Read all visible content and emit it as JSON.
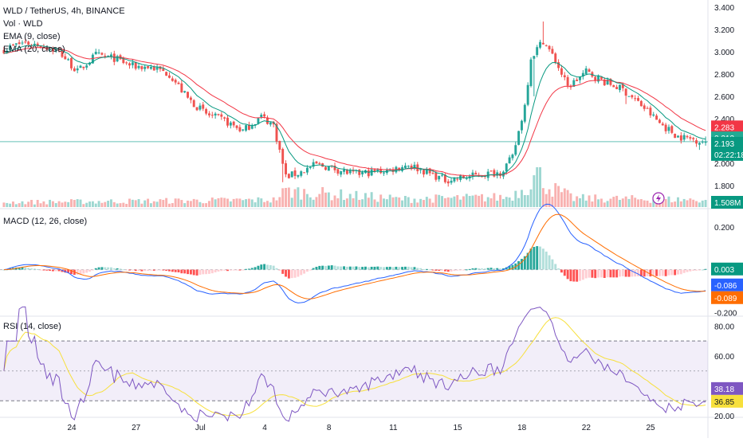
{
  "header": {
    "symbol_line": "WLD / TetherUS, 4h, BINANCE",
    "indicators": [
      "Vol · WLD",
      "EMA (9, close)",
      "EMA (20, close)"
    ]
  },
  "colors": {
    "up": "#26a69a",
    "down": "#ef5350",
    "ema_fast": "#089981",
    "ema_slow": "#f23645",
    "macd_line": "#2962ff",
    "signal_line": "#ff6d00",
    "rsi_line": "#7e57c2",
    "rsi_ma": "#f7e03c",
    "rsi_band": "#7e57c2"
  },
  "panes": {
    "macd_label": "MACD (12, 26, close)",
    "rsi_label": "RSI (14, close)"
  },
  "price_axis": {
    "ticks": [
      "3.400",
      "3.200",
      "3.000",
      "2.800",
      "2.600",
      "2.400",
      "2.000",
      "1.800"
    ],
    "badges": [
      {
        "text": "2.283",
        "color": "#f23645"
      },
      {
        "text": "2.213",
        "color": "#22ab94"
      },
      {
        "text": "2.193",
        "color": "#089981"
      },
      {
        "text": "02:22:18",
        "color": "#089981"
      },
      {
        "text": "1.508M",
        "color": "#089981"
      }
    ]
  },
  "macd_axis": {
    "ticks": [
      "0.200",
      "-0.200"
    ],
    "badges": [
      {
        "text": "0.003",
        "color": "#089981"
      },
      {
        "text": "-0.086",
        "color": "#2962ff"
      },
      {
        "text": "-0.089",
        "color": "#ff6d00"
      }
    ]
  },
  "rsi_axis": {
    "ticks": [
      "80.00",
      "60.00",
      "20.00"
    ],
    "badges": [
      {
        "text": "38.18",
        "color": "#7e57c2"
      },
      {
        "text": "36.85",
        "color": "#f7e03c"
      }
    ]
  },
  "time_axis": {
    "labels": [
      "24",
      "27",
      "Jul",
      "4",
      "8",
      "11",
      "15",
      "18",
      "22",
      "25"
    ]
  },
  "chart_data": {
    "type": "candlestick",
    "title": "WLD / TetherUS, 4h, BINANCE",
    "price_ylim": [
      1.65,
      3.42
    ],
    "price_anchors": [
      [
        0,
        3.02
      ],
      [
        6,
        3.08
      ],
      [
        12,
        3.06
      ],
      [
        18,
        3.0
      ],
      [
        24,
        2.82
      ],
      [
        30,
        2.97
      ],
      [
        36,
        2.94
      ],
      [
        42,
        2.87
      ],
      [
        48,
        2.86
      ],
      [
        54,
        2.8
      ],
      [
        60,
        2.58
      ],
      [
        66,
        2.44
      ],
      [
        72,
        2.38
      ],
      [
        78,
        2.29
      ],
      [
        84,
        2.42
      ],
      [
        88,
        2.34
      ],
      [
        92,
        1.88
      ],
      [
        96,
        1.91
      ],
      [
        102,
        1.99
      ],
      [
        108,
        1.95
      ],
      [
        114,
        1.9
      ],
      [
        120,
        1.92
      ],
      [
        126,
        1.94
      ],
      [
        132,
        1.99
      ],
      [
        138,
        1.92
      ],
      [
        144,
        1.85
      ],
      [
        150,
        1.87
      ],
      [
        156,
        1.9
      ],
      [
        162,
        1.92
      ],
      [
        166,
        2.05
      ],
      [
        170,
        2.52
      ],
      [
        172,
        2.95
      ],
      [
        176,
        3.1
      ],
      [
        180,
        2.92
      ],
      [
        184,
        2.68
      ],
      [
        190,
        2.82
      ],
      [
        196,
        2.73
      ],
      [
        202,
        2.66
      ],
      [
        208,
        2.52
      ],
      [
        214,
        2.36
      ],
      [
        220,
        2.24
      ],
      [
        226,
        2.21
      ],
      [
        229,
        2.19
      ]
    ],
    "spikes": [
      [
        176,
        3.27
      ],
      [
        91,
        1.83
      ],
      [
        173,
        2.6
      ],
      [
        203,
        2.53
      ],
      [
        227,
        2.12
      ]
    ],
    "volume_profile": [
      [
        0,
        0.12
      ],
      [
        88,
        0.18
      ],
      [
        92,
        0.4
      ],
      [
        130,
        0.2
      ],
      [
        165,
        0.25
      ],
      [
        171,
        0.55
      ],
      [
        174,
        0.85
      ],
      [
        178,
        0.5
      ],
      [
        186,
        0.22
      ],
      [
        229,
        0.18
      ]
    ],
    "ema_periods": [
      9,
      20
    ],
    "macd_ylim": [
      -0.21,
      0.27
    ],
    "macd_last": {
      "histogram": 0.003,
      "macd": -0.086,
      "signal": -0.089
    },
    "rsi_ylim": [
      20,
      85
    ],
    "rsi_band": [
      30,
      70
    ],
    "rsi_midline": 50,
    "rsi_last": {
      "rsi": 38.18,
      "ma": 36.85
    },
    "last_price": 2.193,
    "ema9_last": 2.213,
    "ema20_last": 2.283,
    "volume_last": "1.508M",
    "countdown": "02:22:18"
  }
}
